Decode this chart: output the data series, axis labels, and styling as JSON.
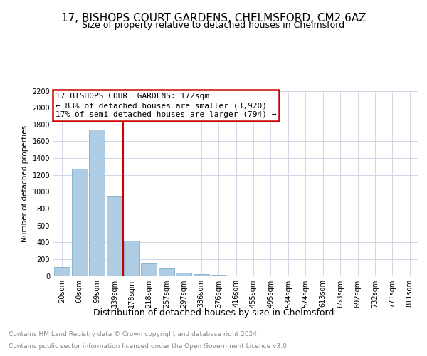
{
  "title": "17, BISHOPS COURT GARDENS, CHELMSFORD, CM2 6AZ",
  "subtitle": "Size of property relative to detached houses in Chelmsford",
  "xlabel": "Distribution of detached houses by size in Chelmsford",
  "ylabel": "Number of detached properties",
  "footer1": "Contains HM Land Registry data © Crown copyright and database right 2024.",
  "footer2": "Contains public sector information licensed under the Open Government Licence v3.0.",
  "categories": [
    "20sqm",
    "60sqm",
    "99sqm",
    "139sqm",
    "178sqm",
    "218sqm",
    "257sqm",
    "297sqm",
    "336sqm",
    "376sqm",
    "416sqm",
    "455sqm",
    "495sqm",
    "534sqm",
    "574sqm",
    "613sqm",
    "653sqm",
    "692sqm",
    "732sqm",
    "771sqm",
    "811sqm"
  ],
  "values": [
    110,
    1270,
    1740,
    950,
    415,
    150,
    85,
    40,
    20,
    15,
    0,
    0,
    0,
    0,
    0,
    0,
    0,
    0,
    0,
    0,
    0
  ],
  "bar_color": "#aecce4",
  "bar_edgecolor": "#7aaec8",
  "vline_x_index": 4,
  "vline_color": "#cc0000",
  "annotation_line1": "17 BISHOPS COURT GARDENS: 172sqm",
  "annotation_line2": "← 83% of detached houses are smaller (3,920)",
  "annotation_line3": "17% of semi-detached houses are larger (794) →",
  "annotation_box_color": "#cc0000",
  "ylim": [
    0,
    2200
  ],
  "yticks": [
    0,
    200,
    400,
    600,
    800,
    1000,
    1200,
    1400,
    1600,
    1800,
    2000,
    2200
  ],
  "bg_color": "#ffffff",
  "grid_color": "#d0d8e8",
  "title_fontsize": 11,
  "subtitle_fontsize": 9,
  "xlabel_fontsize": 9,
  "ylabel_fontsize": 7.5,
  "tick_fontsize": 7,
  "footer_fontsize": 6.5,
  "ann_fontsize": 8
}
